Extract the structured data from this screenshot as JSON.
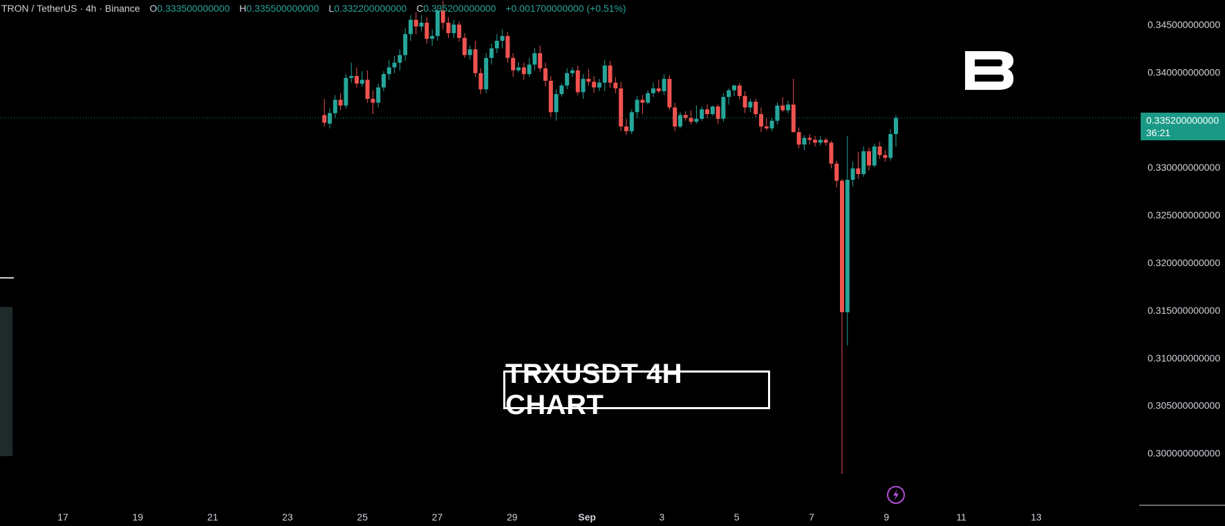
{
  "legend": {
    "symbol": "TRON / TetherUS · 4h · Binance",
    "open_label": "O",
    "open": "0.333500000000",
    "high_label": "H",
    "high": "0.335500000000",
    "low_label": "L",
    "low": "0.332200000000",
    "close_label": "C",
    "close": "0.335200000000",
    "change": "+0.001700000000 (+0.51%)"
  },
  "watermark_text": "TRXUSDT 4H CHART",
  "last_price": {
    "price": "0.335200000000",
    "countdown": "36:21"
  },
  "colors": {
    "up": "#26a69a",
    "down": "#ef5350",
    "background": "#000000",
    "text": "#d1d4dc"
  },
  "icons": {
    "logo": "brand-b-logo",
    "bolt": "lightning-bolt-icon"
  },
  "chart_data": {
    "type": "candlestick",
    "title": "",
    "ylim": [
      0.2975,
      0.347
    ],
    "y_ticks": [
      {
        "value": 0.345,
        "label": "0.345000000000"
      },
      {
        "value": 0.34,
        "label": "0.340000000000"
      },
      {
        "value": 0.33,
        "label": "0.330000000000"
      },
      {
        "value": 0.325,
        "label": "0.325000000000"
      },
      {
        "value": 0.32,
        "label": "0.320000000000"
      },
      {
        "value": 0.315,
        "label": "0.315000000000"
      },
      {
        "value": 0.31,
        "label": "0.310000000000"
      },
      {
        "value": 0.305,
        "label": "0.305000000000"
      },
      {
        "value": 0.3,
        "label": "0.300000000000"
      }
    ],
    "x_ticks": [
      "17",
      "19",
      "21",
      "23",
      "25",
      "27",
      "29",
      "Sep",
      "3",
      "5",
      "7",
      "9",
      "11",
      "13"
    ],
    "last_price_line": 0.3352,
    "candles": [
      {
        "o": 0.3355,
        "h": 0.3372,
        "l": 0.3343,
        "c": 0.3347
      },
      {
        "o": 0.3346,
        "h": 0.3362,
        "l": 0.3341,
        "c": 0.3357
      },
      {
        "o": 0.3357,
        "h": 0.3376,
        "l": 0.3352,
        "c": 0.3371
      },
      {
        "o": 0.3371,
        "h": 0.3378,
        "l": 0.336,
        "c": 0.3365
      },
      {
        "o": 0.3365,
        "h": 0.3398,
        "l": 0.3362,
        "c": 0.3394
      },
      {
        "o": 0.3394,
        "h": 0.341,
        "l": 0.3389,
        "c": 0.3396
      },
      {
        "o": 0.3396,
        "h": 0.3405,
        "l": 0.3384,
        "c": 0.3388
      },
      {
        "o": 0.3388,
        "h": 0.3401,
        "l": 0.3385,
        "c": 0.3392
      },
      {
        "o": 0.3392,
        "h": 0.3402,
        "l": 0.3368,
        "c": 0.3372
      },
      {
        "o": 0.3372,
        "h": 0.3381,
        "l": 0.3356,
        "c": 0.3368
      },
      {
        "o": 0.3368,
        "h": 0.3388,
        "l": 0.3363,
        "c": 0.3384
      },
      {
        "o": 0.3384,
        "h": 0.3401,
        "l": 0.338,
        "c": 0.3398
      },
      {
        "o": 0.3398,
        "h": 0.3413,
        "l": 0.3392,
        "c": 0.3405
      },
      {
        "o": 0.3405,
        "h": 0.3417,
        "l": 0.3399,
        "c": 0.341
      },
      {
        "o": 0.341,
        "h": 0.3424,
        "l": 0.3402,
        "c": 0.3418
      },
      {
        "o": 0.3418,
        "h": 0.3446,
        "l": 0.3412,
        "c": 0.344
      },
      {
        "o": 0.344,
        "h": 0.346,
        "l": 0.3433,
        "c": 0.3455
      },
      {
        "o": 0.3455,
        "h": 0.3463,
        "l": 0.344,
        "c": 0.3448
      },
      {
        "o": 0.3448,
        "h": 0.346,
        "l": 0.3443,
        "c": 0.3452
      },
      {
        "o": 0.3452,
        "h": 0.3458,
        "l": 0.343,
        "c": 0.3435
      },
      {
        "o": 0.3435,
        "h": 0.3445,
        "l": 0.3428,
        "c": 0.3438
      },
      {
        "o": 0.3438,
        "h": 0.347,
        "l": 0.3433,
        "c": 0.3465
      },
      {
        "o": 0.3465,
        "h": 0.3475,
        "l": 0.3445,
        "c": 0.3452
      },
      {
        "o": 0.3452,
        "h": 0.3458,
        "l": 0.3436,
        "c": 0.3441
      },
      {
        "o": 0.3441,
        "h": 0.3455,
        "l": 0.3436,
        "c": 0.345
      },
      {
        "o": 0.345,
        "h": 0.3453,
        "l": 0.3432,
        "c": 0.3436
      },
      {
        "o": 0.3436,
        "h": 0.3441,
        "l": 0.3415,
        "c": 0.3418
      },
      {
        "o": 0.3418,
        "h": 0.3428,
        "l": 0.3413,
        "c": 0.3424
      },
      {
        "o": 0.3424,
        "h": 0.3433,
        "l": 0.3395,
        "c": 0.3399
      },
      {
        "o": 0.3399,
        "h": 0.3404,
        "l": 0.3377,
        "c": 0.3382
      },
      {
        "o": 0.3382,
        "h": 0.342,
        "l": 0.3378,
        "c": 0.3415
      },
      {
        "o": 0.3415,
        "h": 0.343,
        "l": 0.3408,
        "c": 0.3425
      },
      {
        "o": 0.3425,
        "h": 0.344,
        "l": 0.342,
        "c": 0.3433
      },
      {
        "o": 0.3433,
        "h": 0.3445,
        "l": 0.3425,
        "c": 0.3438
      },
      {
        "o": 0.3438,
        "h": 0.3442,
        "l": 0.341,
        "c": 0.3415
      },
      {
        "o": 0.3415,
        "h": 0.342,
        "l": 0.3395,
        "c": 0.3402
      },
      {
        "o": 0.3402,
        "h": 0.341,
        "l": 0.34,
        "c": 0.3405
      },
      {
        "o": 0.3405,
        "h": 0.341,
        "l": 0.3392,
        "c": 0.3398
      },
      {
        "o": 0.3398,
        "h": 0.3415,
        "l": 0.3395,
        "c": 0.3408
      },
      {
        "o": 0.3408,
        "h": 0.3425,
        "l": 0.3402,
        "c": 0.342
      },
      {
        "o": 0.342,
        "h": 0.3428,
        "l": 0.34,
        "c": 0.3404
      },
      {
        "o": 0.3404,
        "h": 0.341,
        "l": 0.3385,
        "c": 0.3391
      },
      {
        "o": 0.3391,
        "h": 0.3396,
        "l": 0.3353,
        "c": 0.3358
      },
      {
        "o": 0.3358,
        "h": 0.3382,
        "l": 0.3349,
        "c": 0.3377
      },
      {
        "o": 0.3377,
        "h": 0.3388,
        "l": 0.3374,
        "c": 0.3386
      },
      {
        "o": 0.3386,
        "h": 0.3404,
        "l": 0.3382,
        "c": 0.3399
      },
      {
        "o": 0.3399,
        "h": 0.3405,
        "l": 0.3395,
        "c": 0.3402
      },
      {
        "o": 0.3402,
        "h": 0.3407,
        "l": 0.3376,
        "c": 0.3379
      },
      {
        "o": 0.3379,
        "h": 0.3398,
        "l": 0.3372,
        "c": 0.3393
      },
      {
        "o": 0.3393,
        "h": 0.3403,
        "l": 0.3386,
        "c": 0.339
      },
      {
        "o": 0.339,
        "h": 0.3396,
        "l": 0.3378,
        "c": 0.3384
      },
      {
        "o": 0.3384,
        "h": 0.3393,
        "l": 0.338,
        "c": 0.3389
      },
      {
        "o": 0.3389,
        "h": 0.3413,
        "l": 0.338,
        "c": 0.3407
      },
      {
        "o": 0.3407,
        "h": 0.3412,
        "l": 0.3384,
        "c": 0.3389
      },
      {
        "o": 0.3389,
        "h": 0.3395,
        "l": 0.3378,
        "c": 0.3383
      },
      {
        "o": 0.3383,
        "h": 0.339,
        "l": 0.3338,
        "c": 0.3343
      },
      {
        "o": 0.3343,
        "h": 0.3351,
        "l": 0.3334,
        "c": 0.3338
      },
      {
        "o": 0.3338,
        "h": 0.3361,
        "l": 0.3335,
        "c": 0.3358
      },
      {
        "o": 0.3358,
        "h": 0.3375,
        "l": 0.3352,
        "c": 0.3371
      },
      {
        "o": 0.3371,
        "h": 0.3376,
        "l": 0.3356,
        "c": 0.3368
      },
      {
        "o": 0.3368,
        "h": 0.3381,
        "l": 0.3366,
        "c": 0.3378
      },
      {
        "o": 0.3378,
        "h": 0.3389,
        "l": 0.3374,
        "c": 0.3383
      },
      {
        "o": 0.3383,
        "h": 0.3392,
        "l": 0.3378,
        "c": 0.338
      },
      {
        "o": 0.338,
        "h": 0.3398,
        "l": 0.3376,
        "c": 0.3393
      },
      {
        "o": 0.3393,
        "h": 0.3397,
        "l": 0.336,
        "c": 0.3363
      },
      {
        "o": 0.3363,
        "h": 0.3368,
        "l": 0.3338,
        "c": 0.3343
      },
      {
        "o": 0.3343,
        "h": 0.3358,
        "l": 0.3341,
        "c": 0.3355
      },
      {
        "o": 0.3355,
        "h": 0.3359,
        "l": 0.3349,
        "c": 0.3352
      },
      {
        "o": 0.3352,
        "h": 0.336,
        "l": 0.3345,
        "c": 0.3348
      },
      {
        "o": 0.3348,
        "h": 0.3365,
        "l": 0.3346,
        "c": 0.3351
      },
      {
        "o": 0.3351,
        "h": 0.3364,
        "l": 0.3349,
        "c": 0.3361
      },
      {
        "o": 0.3361,
        "h": 0.3366,
        "l": 0.3352,
        "c": 0.3356
      },
      {
        "o": 0.3356,
        "h": 0.3365,
        "l": 0.3354,
        "c": 0.3364
      },
      {
        "o": 0.3364,
        "h": 0.3366,
        "l": 0.3346,
        "c": 0.3351
      },
      {
        "o": 0.3351,
        "h": 0.3378,
        "l": 0.3348,
        "c": 0.3374
      },
      {
        "o": 0.3374,
        "h": 0.3383,
        "l": 0.3366,
        "c": 0.3381
      },
      {
        "o": 0.3381,
        "h": 0.3387,
        "l": 0.3375,
        "c": 0.3386
      },
      {
        "o": 0.3386,
        "h": 0.3389,
        "l": 0.3371,
        "c": 0.3375
      },
      {
        "o": 0.3375,
        "h": 0.338,
        "l": 0.3357,
        "c": 0.3363
      },
      {
        "o": 0.3363,
        "h": 0.3372,
        "l": 0.3358,
        "c": 0.3369
      },
      {
        "o": 0.3369,
        "h": 0.3372,
        "l": 0.3353,
        "c": 0.3356
      },
      {
        "o": 0.3356,
        "h": 0.3363,
        "l": 0.3337,
        "c": 0.3343
      },
      {
        "o": 0.3343,
        "h": 0.3352,
        "l": 0.3339,
        "c": 0.3341
      },
      {
        "o": 0.3341,
        "h": 0.3352,
        "l": 0.3338,
        "c": 0.3349
      },
      {
        "o": 0.3349,
        "h": 0.3368,
        "l": 0.3345,
        "c": 0.3365
      },
      {
        "o": 0.3365,
        "h": 0.3374,
        "l": 0.3358,
        "c": 0.336
      },
      {
        "o": 0.336,
        "h": 0.337,
        "l": 0.3357,
        "c": 0.3366
      },
      {
        "o": 0.3366,
        "h": 0.3393,
        "l": 0.3337,
        "c": 0.3337
      },
      {
        "o": 0.3337,
        "h": 0.3342,
        "l": 0.332,
        "c": 0.3324
      },
      {
        "o": 0.3324,
        "h": 0.3334,
        "l": 0.3318,
        "c": 0.3331
      },
      {
        "o": 0.3331,
        "h": 0.3335,
        "l": 0.3324,
        "c": 0.3329
      },
      {
        "o": 0.3329,
        "h": 0.3333,
        "l": 0.3322,
        "c": 0.3326
      },
      {
        "o": 0.3326,
        "h": 0.3333,
        "l": 0.3323,
        "c": 0.3329
      },
      {
        "o": 0.3329,
        "h": 0.3331,
        "l": 0.3323,
        "c": 0.3326
      },
      {
        "o": 0.3326,
        "h": 0.3328,
        "l": 0.3299,
        "c": 0.3304
      },
      {
        "o": 0.3304,
        "h": 0.3307,
        "l": 0.3279,
        "c": 0.3286
      },
      {
        "o": 0.3286,
        "h": 0.3288,
        "l": 0.2978,
        "c": 0.3148
      },
      {
        "o": 0.3148,
        "h": 0.3333,
        "l": 0.3113,
        "c": 0.3287
      },
      {
        "o": 0.3287,
        "h": 0.3306,
        "l": 0.328,
        "c": 0.3299
      },
      {
        "o": 0.3299,
        "h": 0.3316,
        "l": 0.3288,
        "c": 0.3293
      },
      {
        "o": 0.3293,
        "h": 0.3322,
        "l": 0.329,
        "c": 0.3317
      },
      {
        "o": 0.3317,
        "h": 0.3321,
        "l": 0.3297,
        "c": 0.3302
      },
      {
        "o": 0.3302,
        "h": 0.3325,
        "l": 0.33,
        "c": 0.3322
      },
      {
        "o": 0.3322,
        "h": 0.3327,
        "l": 0.3309,
        "c": 0.3313
      },
      {
        "o": 0.3313,
        "h": 0.3318,
        "l": 0.3306,
        "c": 0.331
      },
      {
        "o": 0.331,
        "h": 0.334,
        "l": 0.3307,
        "c": 0.3335
      },
      {
        "o": 0.3335,
        "h": 0.3355,
        "l": 0.3322,
        "c": 0.3352
      }
    ]
  }
}
